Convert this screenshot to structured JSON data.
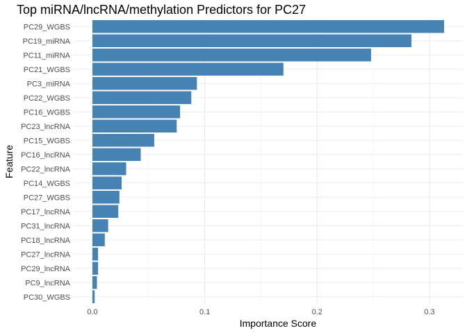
{
  "chart_data": {
    "type": "bar",
    "orientation": "horizontal",
    "title": "Top miRNA/lncRNA/methylation Predictors for PC27",
    "xlabel": "Importance Score",
    "ylabel": "Feature",
    "xlim": [
      0,
      0.33
    ],
    "xticks": [
      "0.0",
      "0.1",
      "0.2",
      "0.3"
    ],
    "xtick_values": [
      0,
      0.1,
      0.2,
      0.3
    ],
    "grid": true,
    "bar_color": "#4682B4",
    "categories": [
      "PC29_WGBS",
      "PC19_miRNA",
      "PC11_miRNA",
      "PC21_WGBS",
      "PC3_miRNA",
      "PC22_WGBS",
      "PC16_WGBS",
      "PC23_lncRNA",
      "PC15_WGBS",
      "PC16_lncRNA",
      "PC22_lncRNA",
      "PC14_WGBS",
      "PC27_WGBS",
      "PC17_lncRNA",
      "PC31_lncRNA",
      "PC18_lncRNA",
      "PC27_lncRNA",
      "PC29_lncRNA",
      "PC9_lncRNA",
      "PC30_WGBS"
    ],
    "values": [
      0.313,
      0.284,
      0.248,
      0.17,
      0.093,
      0.088,
      0.078,
      0.075,
      0.055,
      0.043,
      0.03,
      0.026,
      0.024,
      0.023,
      0.014,
      0.011,
      0.005,
      0.005,
      0.004,
      0.002
    ]
  }
}
